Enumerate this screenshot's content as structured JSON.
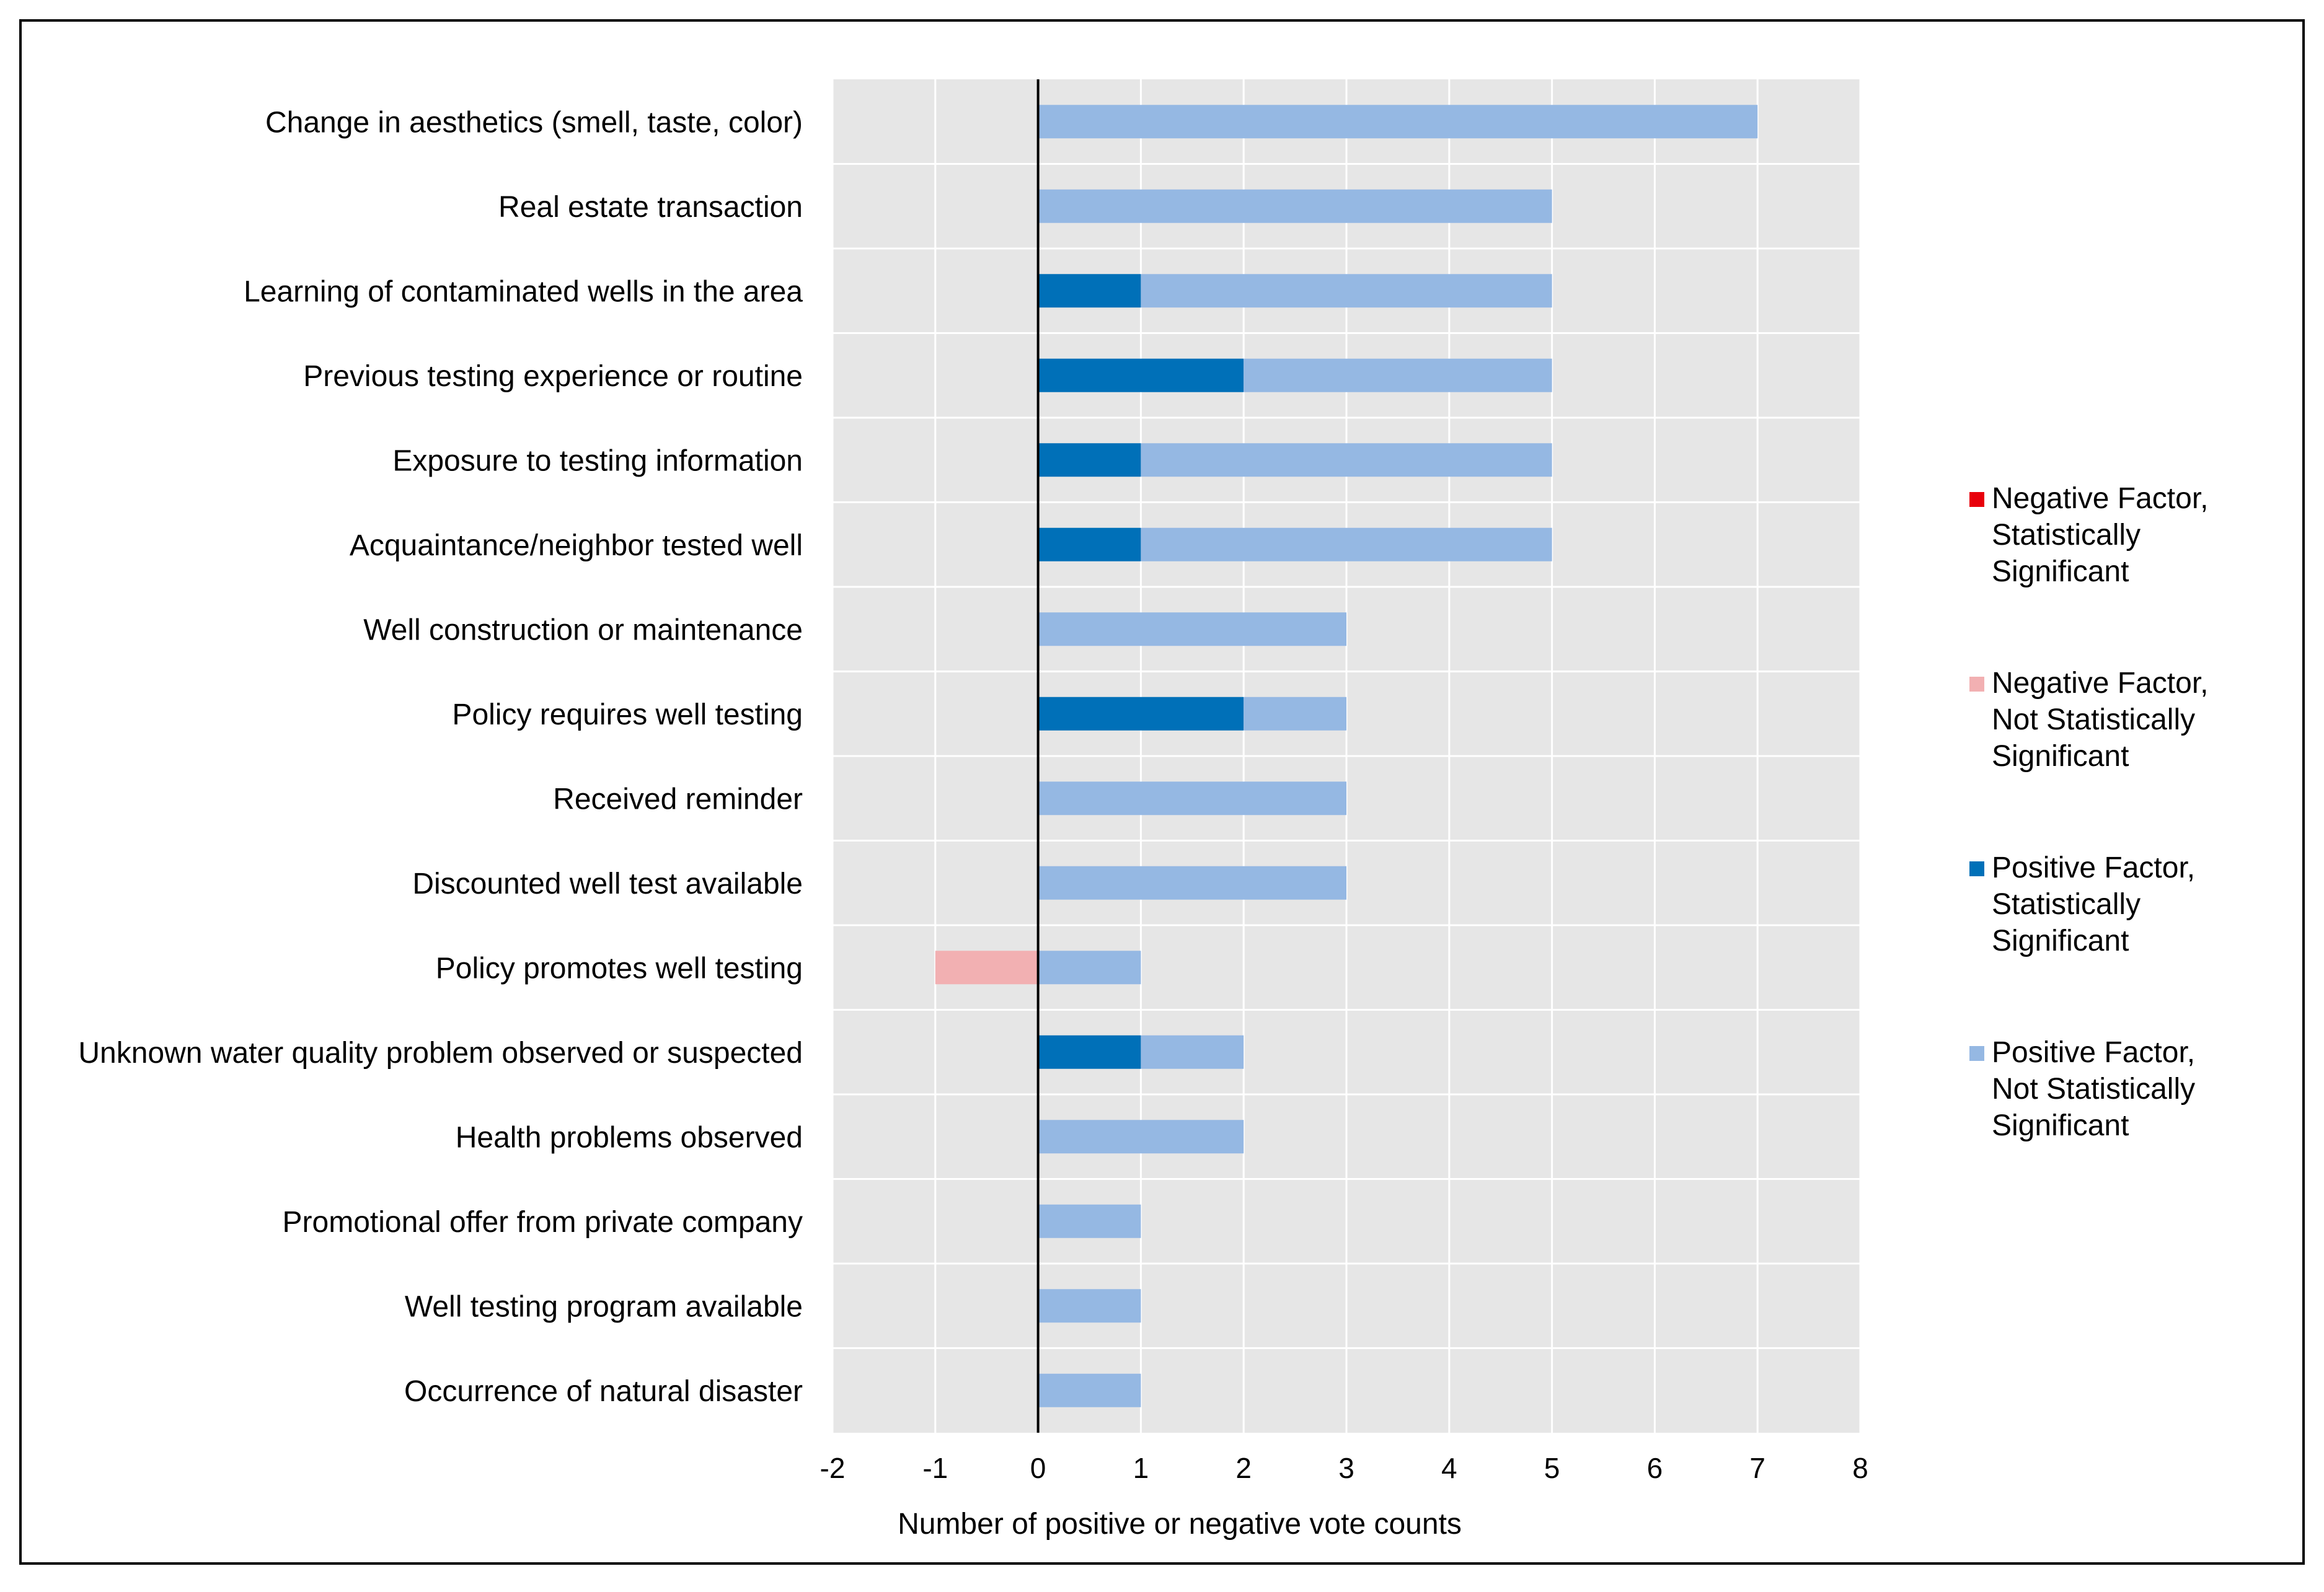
{
  "colors": {
    "negative_significant": "#e8000b",
    "negative_not_significant": "#f2b0b2",
    "positive_significant": "#0070b8",
    "positive_not_significant": "#95b8e3",
    "plot_background": "#e6e6e6",
    "grid": "#ffffff",
    "frame": "#000000"
  },
  "chart_data": {
    "type": "bar",
    "orientation": "horizontal",
    "stacked": true,
    "title": "",
    "xlabel": "Number of positive or negative vote counts",
    "ylabel": "",
    "xlim": [
      -2,
      8
    ],
    "xticks": [
      "-2",
      "-1",
      "0",
      "1",
      "2",
      "3",
      "4",
      "5",
      "6",
      "7",
      "8"
    ],
    "grid": true,
    "legend_position": "right",
    "categories": [
      "Change in aesthetics (smell, taste, color)",
      "Real estate transaction",
      "Learning of contaminated wells in the area",
      "Previous testing experience or routine",
      "Exposure to testing information",
      "Acquaintance/neighbor tested well",
      "Well construction or maintenance",
      "Policy requires well testing",
      "Received reminder",
      "Discounted well test available",
      "Policy promotes well testing",
      "Unknown water quality problem observed or suspected",
      "Health problems observed",
      "Promotional offer from private company",
      "Well testing program available",
      "Occurrence of natural disaster"
    ],
    "series": [
      {
        "name": "Negative Factor, Statistically Significant",
        "legend_lines": [
          "Negative Factor,",
          "Statistically",
          "Significant"
        ],
        "color_key": "negative_significant",
        "values": [
          0,
          0,
          0,
          0,
          0,
          0,
          0,
          0,
          0,
          0,
          0,
          0,
          0,
          0,
          0,
          0
        ]
      },
      {
        "name": "Negative Factor, Not Statistically Significant",
        "legend_lines": [
          "Negative Factor,",
          "Not Statistically",
          "Significant"
        ],
        "color_key": "negative_not_significant",
        "values": [
          0,
          0,
          0,
          0,
          0,
          0,
          0,
          0,
          0,
          0,
          -1,
          0,
          0,
          0,
          0,
          0
        ]
      },
      {
        "name": "Positive Factor, Statistically Significant",
        "legend_lines": [
          "Positive Factor,",
          "Statistically",
          "Significant"
        ],
        "color_key": "positive_significant",
        "values": [
          0,
          0,
          1,
          2,
          1,
          1,
          0,
          2,
          0,
          0,
          0,
          1,
          0,
          0,
          0,
          0
        ]
      },
      {
        "name": "Positive Factor, Not Statistically Significant",
        "legend_lines": [
          "Positive Factor,",
          "Not Statistically",
          "Significant"
        ],
        "color_key": "positive_not_significant",
        "values": [
          7,
          5,
          4,
          3,
          4,
          4,
          3,
          1,
          3,
          3,
          1,
          1,
          2,
          1,
          1,
          1
        ]
      }
    ]
  }
}
